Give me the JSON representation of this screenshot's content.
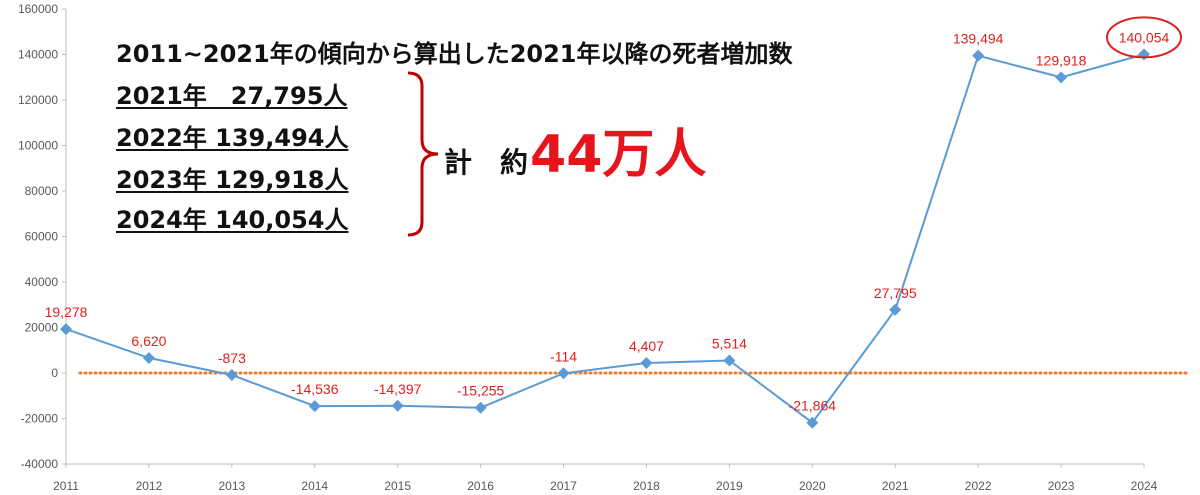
{
  "chart_data": {
    "type": "line",
    "x": [
      "2011",
      "2012",
      "2013",
      "2014",
      "2015",
      "2016",
      "2017",
      "2018",
      "2019",
      "2020",
      "2021",
      "2022",
      "2023",
      "2024"
    ],
    "series": [
      {
        "values": [
          19278,
          6620,
          -873,
          -14536,
          -14397,
          -15255,
          -114,
          4407,
          5514,
          -21864,
          27795,
          139494,
          129918,
          140054
        ]
      }
    ],
    "data_labels": [
      "19,278",
      "6,620",
      "-873",
      "-14,536",
      "-14,397",
      "-15,255",
      "-114",
      "4,407",
      "5,514",
      "-21,864",
      "27,795",
      "139,494",
      "129,918",
      "140,054"
    ],
    "ylim": [
      -40000,
      160000
    ],
    "yticks": [
      -40000,
      -20000,
      0,
      20000,
      40000,
      60000,
      80000,
      100000,
      120000,
      140000,
      160000
    ],
    "ytick_labels": [
      "-40000",
      "-20000",
      "0",
      "20000",
      "40000",
      "60000",
      "80000",
      "100000",
      "120000",
      "140000",
      "160000"
    ],
    "zero_line": "dotted orange",
    "highlighted_point": "2024",
    "grid": false,
    "line_color": "#5b9bd5",
    "label_color": "#e02020",
    "zero_line_color": "#ed7d31"
  },
  "annotation": {
    "title": "2011~2021年の傾向から算出した2021年以降の死者増加数",
    "rows": [
      "2021年　27,795人",
      "2022年 139,494人",
      "2023年 129,918人",
      "2024年 140,054人"
    ],
    "total_label": "計　約",
    "total_value": "44万人",
    "bracket_color": "#c00000",
    "total_color": "#e8141c"
  }
}
